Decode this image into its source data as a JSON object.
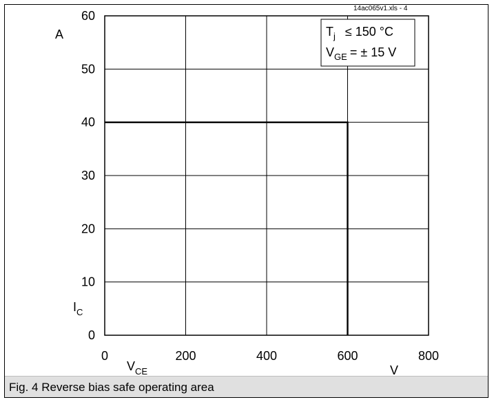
{
  "caption": "Fig. 4 Reverse bias safe operating area",
  "file_label": "14ac065v1.xls - 4",
  "legend": {
    "line1_main": "T",
    "line1_sub": "j",
    "line1_rest": "≤ 150 °C",
    "line2_main": "V",
    "line2_sub": "GE",
    "line2_rest": "= ± 15 V"
  },
  "chart_data": {
    "type": "line",
    "title": "",
    "xlabel_main": "V",
    "xlabel_sub": "CE",
    "xunit": "V",
    "ylabel_main": "I",
    "ylabel_sub": "C",
    "yunit": "A",
    "xlim": [
      0,
      800
    ],
    "ylim": [
      0,
      60
    ],
    "xticks": [
      0,
      200,
      400,
      600,
      800
    ],
    "yticks": [
      0,
      10,
      20,
      30,
      40,
      50,
      60
    ],
    "xtick_labels": [
      "0",
      "200",
      "400",
      "600",
      "800"
    ],
    "ytick_labels": [
      "0",
      "10",
      "20",
      "30",
      "40",
      "50",
      "60"
    ],
    "grid": true,
    "series": [
      {
        "x": [
          0,
          600,
          600
        ],
        "y": [
          40,
          40,
          0
        ]
      }
    ]
  }
}
